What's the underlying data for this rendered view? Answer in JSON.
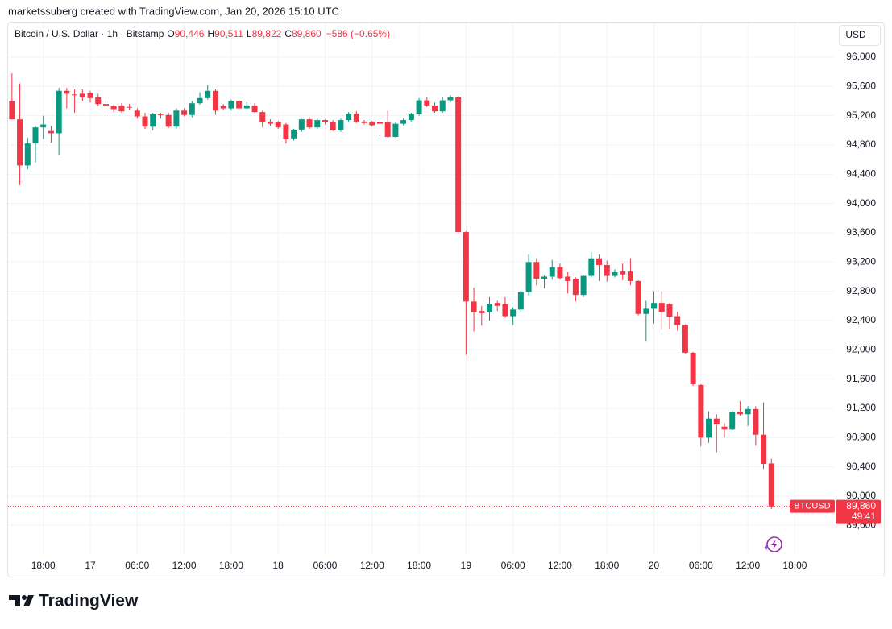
{
  "caption": "marketssuberg created with TradingView.com, Jan 20, 2026 15:10 UTC",
  "footer": {
    "brand": "TradingView"
  },
  "chart_data": {
    "type": "candlestick",
    "header": {
      "symbol": "Bitcoin / U.S. Dollar · 1h · Bitstamp",
      "items": [
        {
          "key": "O",
          "value": "90,446"
        },
        {
          "key": "H",
          "value": "90,511"
        },
        {
          "key": "L",
          "value": "89,822"
        },
        {
          "key": "C",
          "value": "89,860"
        }
      ],
      "change": "−586 (−0.65%)"
    },
    "currency": "USD",
    "up_color": "#089981",
    "down_color": "#f23645",
    "open": [
      95400,
      95150,
      94520,
      94820,
      95040,
      94990,
      94960,
      95540,
      95490,
      95500,
      95510,
      95450,
      95360,
      95330,
      95340,
      95320,
      95270,
      95190,
      95050,
      95220,
      95210,
      95050,
      95270,
      95210,
      95370,
      95440,
      95540,
      95330,
      95300,
      95400,
      95300,
      95340,
      95250,
      95120,
      95110,
      95080,
      94890,
      95010,
      95150,
      95040,
      95140,
      95110,
      95000,
      95140,
      95230,
      95120,
      95120,
      95110,
      95110,
      94910,
      95090,
      95140,
      95220,
      95410,
      95340,
      95260,
      95410,
      95450,
      93610,
      92660,
      92530,
      92510,
      92640,
      92620,
      92460,
      92550,
      92790,
      93200,
      92970,
      93000,
      93130,
      93000,
      92970,
      92750,
      93010,
      93250,
      93160,
      93010,
      93070,
      93070,
      92940,
      92490,
      92560,
      92640,
      92620,
      92460,
      92340,
      91960,
      91520,
      90800,
      91060,
      90950,
      90910,
      91150,
      91120,
      91190,
      90840,
      90446
    ],
    "high": [
      95780,
      95640,
      94900,
      95060,
      95200,
      95060,
      95580,
      95580,
      95560,
      95560,
      95540,
      95500,
      95400,
      95350,
      95370,
      95360,
      95300,
      95240,
      95240,
      95240,
      95240,
      95300,
      95300,
      95400,
      95520,
      95620,
      95560,
      95360,
      95420,
      95420,
      95380,
      95370,
      95270,
      95150,
      95130,
      95100,
      95020,
      95160,
      95180,
      95160,
      95150,
      95140,
      95160,
      95250,
      95260,
      95140,
      95130,
      95140,
      95270,
      95110,
      95160,
      95240,
      95440,
      95460,
      95380,
      95460,
      95480,
      95470,
      93620,
      92850,
      92600,
      92720,
      92670,
      92720,
      92580,
      92810,
      93300,
      93250,
      93020,
      93230,
      93180,
      93060,
      92990,
      93020,
      93340,
      93300,
      93220,
      93100,
      93180,
      93250,
      92950,
      92670,
      92800,
      92800,
      92640,
      92520,
      92350,
      91970,
      91530,
      91160,
      91120,
      91000,
      91170,
      91300,
      91230,
      91230,
      91280,
      90511
    ],
    "low": [
      95150,
      94250,
      94470,
      94560,
      94880,
      94830,
      94660,
      95300,
      95240,
      95400,
      95380,
      95330,
      95240,
      95250,
      95240,
      95280,
      95160,
      95020,
      95000,
      95160,
      95030,
      95020,
      95190,
      95180,
      95350,
      95420,
      95210,
      95280,
      95270,
      95280,
      95290,
      95240,
      95040,
      95060,
      95020,
      94820,
      94860,
      94980,
      95020,
      95020,
      95080,
      94990,
      94980,
      95120,
      95100,
      95080,
      95050,
      94920,
      94900,
      94900,
      95070,
      95120,
      95200,
      95320,
      95240,
      95240,
      95380,
      93580,
      91930,
      92250,
      92330,
      92400,
      92530,
      92440,
      92340,
      92520,
      92740,
      92880,
      92840,
      92960,
      92960,
      92770,
      92660,
      92720,
      92990,
      92940,
      92930,
      92990,
      92950,
      92880,
      92470,
      92110,
      92360,
      92270,
      92280,
      92260,
      91950,
      91510,
      90680,
      90730,
      90600,
      90800,
      90900,
      91100,
      90960,
      90690,
      90370,
      89822
    ],
    "close": [
      95150,
      94520,
      94820,
      95040,
      95080,
      94960,
      95540,
      95500,
      95480,
      95450,
      95440,
      95360,
      95340,
      95290,
      95260,
      95310,
      95190,
      95050,
      95220,
      95210,
      95050,
      95270,
      95210,
      95370,
      95440,
      95540,
      95270,
      95300,
      95400,
      95300,
      95340,
      95250,
      95110,
      95090,
      95040,
      94880,
      95010,
      95150,
      95040,
      95140,
      95110,
      95000,
      95140,
      95230,
      95120,
      95100,
      95070,
      95090,
      94910,
      95090,
      95140,
      95220,
      95410,
      95340,
      95260,
      95410,
      95450,
      93610,
      92660,
      92510,
      92500,
      92630,
      92600,
      92460,
      92550,
      92790,
      93200,
      92970,
      93000,
      93130,
      92980,
      92940,
      92750,
      93010,
      93250,
      93160,
      93010,
      93060,
      93030,
      92940,
      92490,
      92560,
      92640,
      92520,
      92450,
      92340,
      91960,
      91530,
      90800,
      91060,
      90980,
      90910,
      91150,
      91120,
      91190,
      90840,
      90440,
      89860
    ],
    "xlim": [
      -0.5,
      105
    ],
    "xticks": [
      {
        "value": 4,
        "label": "18:00"
      },
      {
        "value": 10,
        "label": "17"
      },
      {
        "value": 16,
        "label": "06:00"
      },
      {
        "value": 22,
        "label": "12:00"
      },
      {
        "value": 28,
        "label": "18:00"
      },
      {
        "value": 34,
        "label": "18"
      },
      {
        "value": 40,
        "label": "06:00"
      },
      {
        "value": 46,
        "label": "12:00"
      },
      {
        "value": 52,
        "label": "18:00"
      },
      {
        "value": 58,
        "label": "19"
      },
      {
        "value": 64,
        "label": "06:00"
      },
      {
        "value": 70,
        "label": "12:00"
      },
      {
        "value": 76,
        "label": "18:00"
      },
      {
        "value": 82,
        "label": "20"
      },
      {
        "value": 88,
        "label": "06:00"
      },
      {
        "value": 94,
        "label": "12:00"
      },
      {
        "value": 100,
        "label": "18:00"
      }
    ],
    "ylim": [
      89207,
      96473
    ],
    "yticks": [
      {
        "value": 89600,
        "label": "89,600"
      },
      {
        "value": 90000,
        "label": "90,000"
      },
      {
        "value": 90400,
        "label": "90,400"
      },
      {
        "value": 90800,
        "label": "90,800"
      },
      {
        "value": 91200,
        "label": "91,200"
      },
      {
        "value": 91600,
        "label": "91,600"
      },
      {
        "value": 92000,
        "label": "92,000"
      },
      {
        "value": 92400,
        "label": "92,400"
      },
      {
        "value": 92800,
        "label": "92,800"
      },
      {
        "value": 93200,
        "label": "93,200"
      },
      {
        "value": 93600,
        "label": "93,600"
      },
      {
        "value": 94000,
        "label": "94,000"
      },
      {
        "value": 94400,
        "label": "94,400"
      },
      {
        "value": 94800,
        "label": "94,800"
      },
      {
        "value": 95200,
        "label": "95,200"
      },
      {
        "value": 95600,
        "label": "95,600"
      },
      {
        "value": 96000,
        "label": "96,000"
      }
    ],
    "grid": true,
    "last_price": {
      "symbol": "BTCUSD",
      "value": 89860,
      "label": "89,860",
      "countdown": "49:41"
    }
  }
}
